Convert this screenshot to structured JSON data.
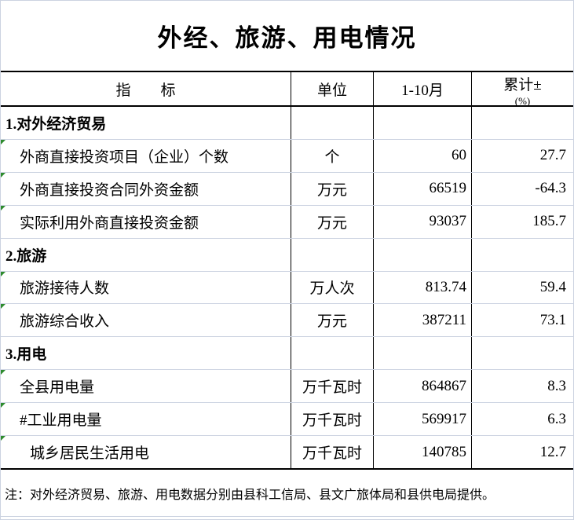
{
  "title": "外经、旅游、用电情况",
  "header": {
    "indicator": "指　　标",
    "unit": "单位",
    "period": "1-10月",
    "cumulative": "累计±",
    "cumulative_sub": "(%)"
  },
  "table": {
    "rows": [
      {
        "label": "1.对外经济贸易",
        "unit": "",
        "value": "",
        "pct": ""
      },
      {
        "label": "外商直接投资项目（企业）个数",
        "unit": "个",
        "value": "60",
        "pct": "27.7"
      },
      {
        "label": "外商直接投资合同外资金额",
        "unit": "万元",
        "value": "66519",
        "pct": "-64.3"
      },
      {
        "label": "实际利用外商直接投资金额",
        "unit": "万元",
        "value": "93037",
        "pct": "185.7"
      },
      {
        "label": "2.旅游",
        "unit": "",
        "value": "",
        "pct": ""
      },
      {
        "label": "旅游接待人数",
        "unit": "万人次",
        "value": "813.74",
        "pct": "59.4"
      },
      {
        "label": "旅游综合收入",
        "unit": "万元",
        "value": "387211",
        "pct": "73.1"
      },
      {
        "label": "3.用电",
        "unit": "",
        "value": "",
        "pct": ""
      },
      {
        "label": "全县用电量",
        "unit": "万千瓦时",
        "value": "864867",
        "pct": "8.3"
      },
      {
        "label": "#工业用电量",
        "unit": "万千瓦时",
        "value": "569917",
        "pct": "6.3"
      },
      {
        "label": "城乡居民生活用电",
        "unit": "万千瓦时",
        "value": "140785",
        "pct": "12.7"
      }
    ]
  },
  "note": "注：对外经济贸易、旅游、用电数据分别由县科工信局、县文广旅体局和县供电局提供。",
  "colors": {
    "table_border": "#000000",
    "grid_line": "#CCD3E1",
    "error_marker_green": "#2E8B2E",
    "text": "#000000",
    "background": "#FFFFFF"
  }
}
